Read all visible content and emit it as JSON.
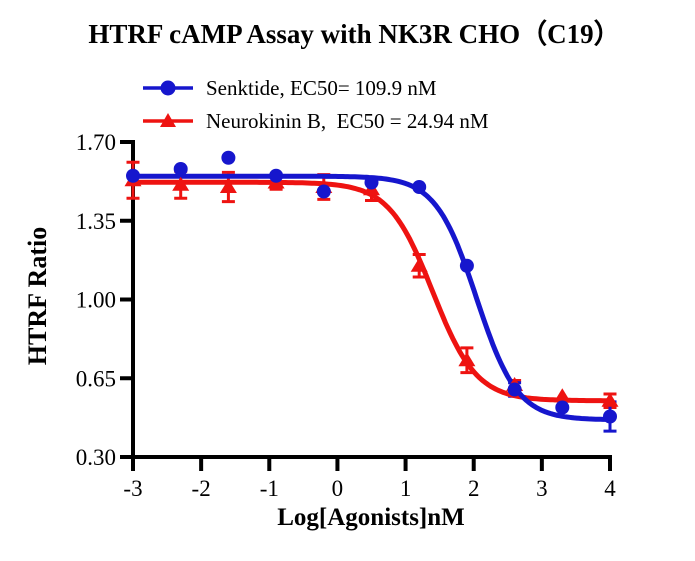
{
  "title": "HTRF cAMP Assay with NK3R CHO（C19）",
  "chart_data": {
    "type": "line",
    "title": "HTRF cAMP Assay with NK3R CHO（C19）",
    "xlabel": "Log[Agonists]nM",
    "ylabel": "HTRF Ratio",
    "xlim": [
      -3,
      4
    ],
    "ylim": [
      0.3,
      1.7
    ],
    "xticks": [
      -3,
      -2,
      -1,
      0,
      1,
      2,
      3,
      4
    ],
    "yticks": [
      0.3,
      0.65,
      1.0,
      1.35,
      1.7
    ],
    "ytick_labels": [
      "0.30",
      "0.65",
      "1.00",
      "1.35",
      "1.70"
    ],
    "grid": false,
    "legend_position": "top-left",
    "series": [
      {
        "name": "Senktide",
        "label": "Senktide, EC50= 109.9 nM",
        "color": "#1616cd",
        "marker": "circle",
        "ec50_nM": 109.9,
        "x": [
          -3,
          -2.3,
          -1.6,
          -0.9,
          -0.2,
          0.5,
          1.2,
          1.9,
          2.6,
          3.3,
          4
        ],
        "y": [
          1.55,
          1.58,
          1.63,
          1.55,
          1.48,
          1.52,
          1.5,
          1.15,
          0.6,
          0.52,
          0.48
        ],
        "err": [
          0,
          0,
          0,
          0,
          0,
          0,
          0,
          0,
          0.03,
          0,
          0.065
        ],
        "fit": {
          "top": 1.548,
          "bottom": 0.465,
          "logEC50": 2.041,
          "hill": 1.45
        }
      },
      {
        "name": "Neurokinin B",
        "label": "Neurokinin B,  EC50 = 24.94 nM",
        "color": "#ee1311",
        "marker": "triangle",
        "ec50_nM": 24.94,
        "x": [
          -3,
          -2.3,
          -1.6,
          -0.9,
          -0.2,
          0.5,
          1.2,
          1.9,
          2.6,
          3.3,
          4
        ],
        "y": [
          1.53,
          1.51,
          1.5,
          1.52,
          1.5,
          1.49,
          1.15,
          0.73,
          0.62,
          0.57,
          0.55
        ],
        "err": [
          0.08,
          0.06,
          0.065,
          0.03,
          0.055,
          0.05,
          0.05,
          0.055,
          0.02,
          0.015,
          0.03
        ],
        "fit": {
          "top": 1.521,
          "bottom": 0.55,
          "logEC50": 1.397,
          "hill": 1.35
        }
      }
    ]
  }
}
